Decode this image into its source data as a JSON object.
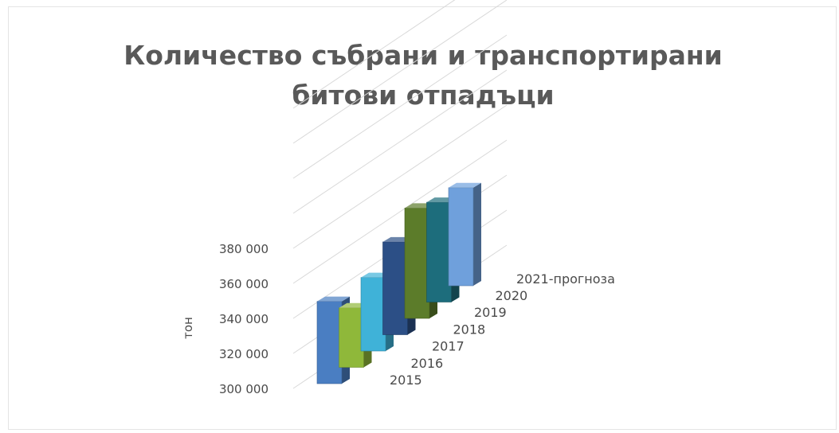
{
  "chart_data": {
    "type": "bar",
    "title_lines": [
      "Количество събрани и транспортирани",
      "битови отпадъци"
    ],
    "ylabel": "тон",
    "yticks": [
      "300 000",
      "320 000",
      "340 000",
      "360 000",
      "380 000"
    ],
    "ylim": [
      300000,
      380000
    ],
    "categories": [
      "2015",
      "2016",
      "2017",
      "2018",
      "2019",
      "2020",
      "2021-прогноза"
    ],
    "values": [
      347000,
      334000,
      342000,
      353000,
      363000,
      357000,
      356000
    ],
    "colors": [
      "#4a7ec2",
      "#8fb83a",
      "#3fb2d8",
      "#2c4f86",
      "#5c7c2a",
      "#1d6d7c",
      "#6fa0dc"
    ],
    "grid": true,
    "legend": false,
    "view": "3d-column"
  }
}
